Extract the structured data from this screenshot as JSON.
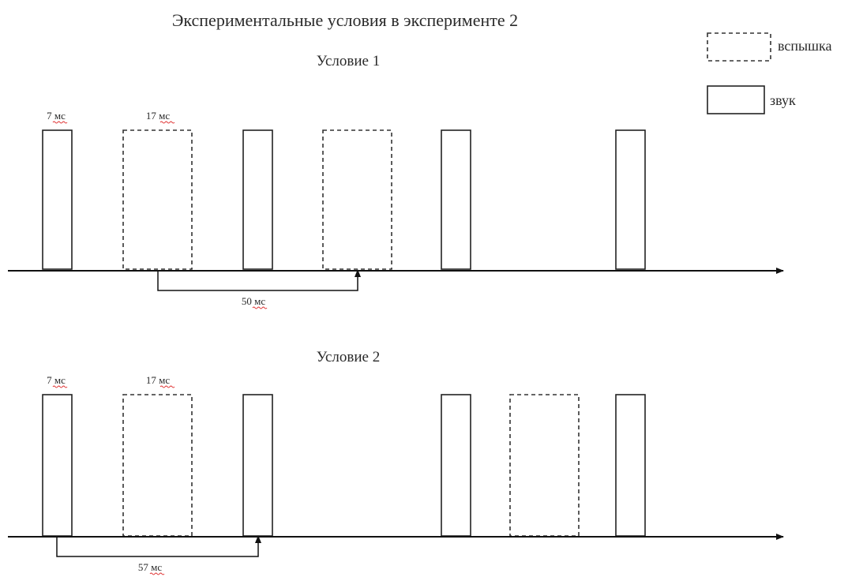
{
  "title": "Экспериментальные условия в эксперименте 2",
  "legend": {
    "flash_label": "вспышка",
    "sound_label": "звук"
  },
  "conditions": [
    {
      "title": "Условие 1",
      "sound_duration_label": "7 мс",
      "flash_duration_label": "17 мс",
      "interval_label": "50 мс"
    },
    {
      "title": "Условие 2",
      "sound_duration_label": "7 мс",
      "flash_duration_label": "17 мс",
      "interval_label": "57 мс"
    }
  ],
  "colors": {
    "stroke": "#222222",
    "spellcheck_underline": "#e03030"
  }
}
